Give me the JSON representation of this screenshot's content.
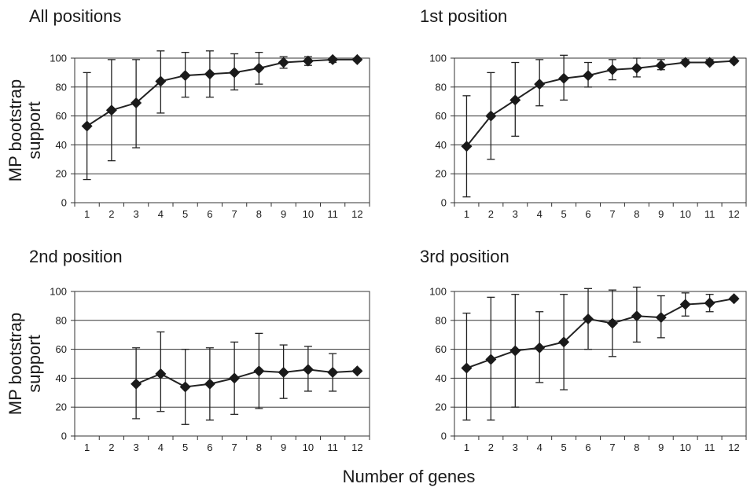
{
  "figure": {
    "y_axis_label_line1": "MP bootstrap",
    "y_axis_label_line2": "support",
    "x_axis_label": "Number of genes"
  },
  "chart_data": [
    {
      "type": "line",
      "title": "All positions",
      "xlabel": "Number of genes",
      "ylabel": "MP bootstrap support",
      "ylim": [
        0,
        100
      ],
      "yticks": [
        0,
        20,
        40,
        60,
        80,
        100
      ],
      "x": [
        1,
        2,
        3,
        4,
        5,
        6,
        7,
        8,
        9,
        10,
        11,
        12
      ],
      "series": [
        {
          "values": [
            53,
            64,
            69,
            84,
            88,
            89,
            90,
            93,
            97,
            98,
            99,
            99
          ],
          "error_low": [
            16,
            29,
            38,
            62,
            73,
            73,
            78,
            82,
            93,
            95,
            97,
            98
          ],
          "error_high": [
            90,
            99,
            99,
            105,
            104,
            105,
            103,
            104,
            101,
            101,
            100,
            100
          ]
        }
      ],
      "grid": "horizontal",
      "marker": "diamond",
      "error_bars": true
    },
    {
      "type": "line",
      "title": "1st position",
      "xlabel": "Number of genes",
      "ylabel": "MP bootstrap support",
      "ylim": [
        0,
        100
      ],
      "yticks": [
        0,
        20,
        40,
        60,
        80,
        100
      ],
      "x": [
        1,
        2,
        3,
        4,
        5,
        6,
        7,
        8,
        9,
        10,
        11,
        12
      ],
      "series": [
        {
          "values": [
            39,
            60,
            71,
            82,
            86,
            88,
            92,
            93,
            95,
            97,
            97,
            98
          ],
          "error_low": [
            4,
            30,
            46,
            67,
            71,
            80,
            85,
            87,
            92,
            96,
            96,
            97
          ],
          "error_high": [
            74,
            90,
            97,
            99,
            102,
            97,
            99,
            100,
            99,
            99,
            99,
            99
          ]
        }
      ],
      "grid": "horizontal",
      "marker": "diamond",
      "error_bars": true
    },
    {
      "type": "line",
      "title": "2nd position",
      "xlabel": "Number of genes",
      "ylabel": "MP bootstrap support",
      "ylim": [
        0,
        100
      ],
      "yticks": [
        0,
        20,
        40,
        60,
        80,
        100
      ],
      "x": [
        3,
        4,
        5,
        6,
        7,
        8,
        9,
        10,
        11,
        12
      ],
      "series": [
        {
          "values": [
            36,
            43,
            34,
            36,
            40,
            45,
            44,
            46,
            44,
            45
          ],
          "error_low": [
            12,
            17,
            8,
            11,
            15,
            19,
            26,
            31,
            31,
            44
          ],
          "error_high": [
            61,
            72,
            60,
            61,
            65,
            71,
            63,
            62,
            57,
            46
          ]
        }
      ],
      "grid": "horizontal",
      "marker": "diamond",
      "error_bars": true
    },
    {
      "type": "line",
      "title": "3rd position",
      "xlabel": "Number of genes",
      "ylabel": "MP bootstrap support",
      "ylim": [
        0,
        100
      ],
      "yticks": [
        0,
        20,
        40,
        60,
        80,
        100
      ],
      "x": [
        1,
        2,
        3,
        4,
        5,
        6,
        7,
        8,
        9,
        10,
        11,
        12
      ],
      "series": [
        {
          "values": [
            47,
            53,
            59,
            61,
            65,
            81,
            78,
            83,
            82,
            91,
            92,
            95
          ],
          "error_low": [
            11,
            11,
            20,
            37,
            32,
            60,
            55,
            65,
            68,
            83,
            86,
            94
          ],
          "error_high": [
            85,
            96,
            98,
            86,
            98,
            102,
            101,
            103,
            97,
            99,
            98,
            96
          ]
        }
      ],
      "grid": "horizontal",
      "marker": "diamond",
      "error_bars": true
    }
  ]
}
